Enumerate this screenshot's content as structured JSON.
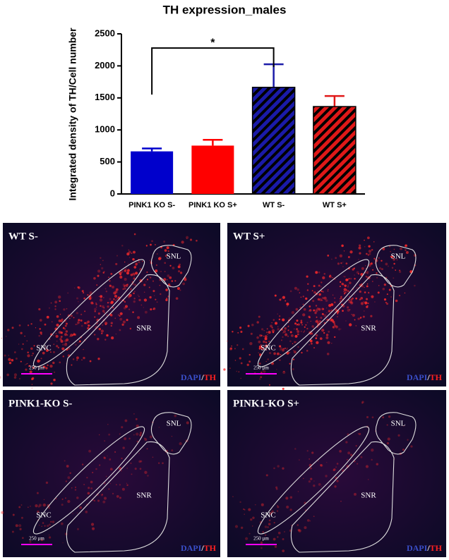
{
  "chart_data": {
    "type": "bar",
    "title": "TH expression_males",
    "y_label": "Integrated density of TH/Cell number",
    "categories": [
      "PINK1 KO S-",
      "PINK1 KO S+",
      "WT S-",
      "WT S+"
    ],
    "values": [
      665,
      755,
      1665,
      1365
    ],
    "errors": [
      45,
      90,
      360,
      165
    ],
    "colors": [
      "#0000cc",
      "#ff0000",
      "#1a1aa8",
      "#e01818"
    ],
    "hatched": [
      false,
      false,
      true,
      true
    ],
    "ylim": [
      0,
      2500
    ],
    "yticks": [
      0,
      500,
      1000,
      1500,
      2000,
      2500
    ],
    "annotations": [
      {
        "text": "*",
        "from": 0,
        "to": 2
      }
    ]
  },
  "panels": [
    {
      "title": "WT S-",
      "regions": [
        "SNL",
        "SNC",
        "SNR"
      ],
      "scale": "250 µm",
      "stain": [
        "DAPI",
        "/",
        "TH"
      ]
    },
    {
      "title": "WT S+",
      "regions": [
        "SNL",
        "SNC",
        "SNR"
      ],
      "scale": "250 µm",
      "stain": [
        "DAPI",
        "/",
        "TH"
      ]
    },
    {
      "title": "PINK1-KO S-",
      "regions": [
        "SNL",
        "SNC",
        "SNR"
      ],
      "scale": "250 µm",
      "stain": [
        "DAPI",
        "/",
        "TH"
      ]
    },
    {
      "title": "PINK1-KO S+",
      "regions": [
        "SNL",
        "SNC",
        "SNR"
      ],
      "scale": "250 µm",
      "stain": [
        "DAPI",
        "/",
        "TH"
      ]
    }
  ]
}
